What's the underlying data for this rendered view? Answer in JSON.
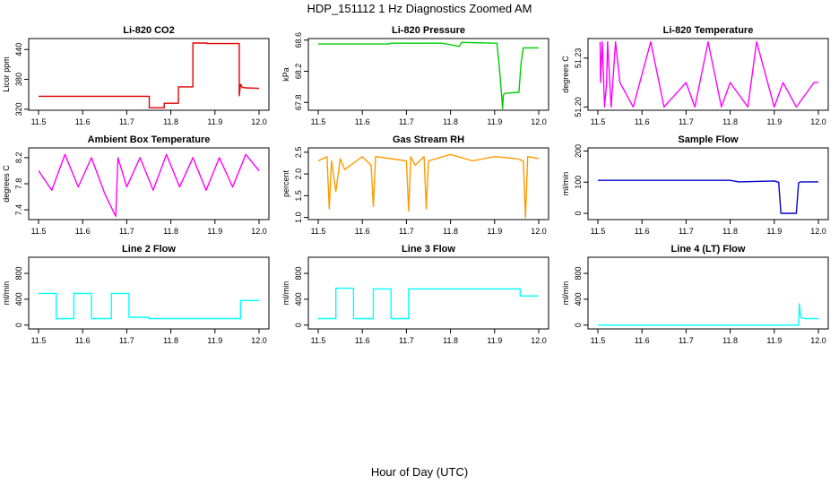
{
  "page_title": "HDP_151112  1 Hz Diagnostics Zoomed AM",
  "common_xlabel": "Hour of Day (UTC)",
  "chart_data": [
    {
      "type": "line",
      "title": "Li-820 CO2",
      "ylabel": "Licor ppm",
      "color": "#e00000",
      "xlim": [
        11.5,
        12.0
      ],
      "xticks": [
        "11.5",
        "11.6",
        "11.7",
        "11.8",
        "11.9",
        "12.0"
      ],
      "ylim": [
        318,
        462
      ],
      "yticks": [
        320,
        380,
        440
      ],
      "ytick_labels": [
        "320",
        "380",
        "440"
      ],
      "series": [
        {
          "x": [
            11.5,
            11.751,
            11.751,
            11.785,
            11.785,
            11.817,
            11.817,
            11.85,
            11.85,
            11.882,
            11.882,
            11.955,
            11.955,
            11.958,
            11.962,
            11.97,
            12.0
          ],
          "y": [
            346,
            346,
            323,
            323,
            332,
            332,
            365,
            365,
            453,
            453,
            452,
            452,
            347,
            370,
            364,
            363,
            362
          ]
        }
      ]
    },
    {
      "type": "line",
      "title": "Li-820 Pressure",
      "ylabel": "kPa",
      "color": "#00cc00",
      "xlim": [
        11.5,
        12.0
      ],
      "xticks": [
        "11.5",
        "11.6",
        "11.7",
        "11.8",
        "11.9",
        "12.0"
      ],
      "ylim": [
        67.7,
        68.62
      ],
      "yticks": [
        67.8,
        68.2,
        68.6
      ],
      "ytick_labels": [
        "67.8",
        "68.2",
        "68.6"
      ],
      "series": [
        {
          "x": [
            11.5,
            11.66,
            11.665,
            11.78,
            11.82,
            11.825,
            11.905,
            11.91,
            11.915,
            11.918,
            11.92,
            11.925,
            11.955,
            11.96,
            11.965,
            11.975,
            12.0
          ],
          "y": [
            68.55,
            68.55,
            68.56,
            68.56,
            68.52,
            68.57,
            68.56,
            68.3,
            67.95,
            67.72,
            67.9,
            67.92,
            67.93,
            68.3,
            68.5,
            68.5,
            68.5
          ]
        }
      ]
    },
    {
      "type": "line",
      "title": "Li-820 Temperature",
      "ylabel": "degrees C",
      "color": "#ff00ff",
      "xlim": [
        11.5,
        12.0
      ],
      "xticks": [
        "11.5",
        "11.6",
        "11.7",
        "11.8",
        "11.9",
        "12.0"
      ],
      "ylim": [
        51.198,
        51.242
      ],
      "yticks": [
        51.2,
        51.23
      ],
      "ytick_labels": [
        "51.20",
        "51.23"
      ],
      "series": [
        {
          "x": [
            11.505,
            11.506,
            11.51,
            11.515,
            11.52,
            11.522,
            11.53,
            11.54,
            11.55,
            11.58,
            11.62,
            11.65,
            11.7,
            11.72,
            11.75,
            11.78,
            11.8,
            11.84,
            11.86,
            11.9,
            11.92,
            11.95,
            11.99,
            12.0
          ],
          "y": [
            51.24,
            51.215,
            51.24,
            51.2,
            51.215,
            51.24,
            51.2,
            51.24,
            51.215,
            51.2,
            51.24,
            51.2,
            51.215,
            51.2,
            51.24,
            51.2,
            51.215,
            51.2,
            51.24,
            51.2,
            51.215,
            51.2,
            51.215,
            51.215
          ]
        }
      ]
    },
    {
      "type": "line",
      "title": "Ambient Box Temperature",
      "ylabel": "degrees C",
      "color": "#ff00ff",
      "xlim": [
        11.5,
        12.0
      ],
      "xticks": [
        "11.5",
        "11.6",
        "11.7",
        "11.8",
        "11.9",
        "12.0"
      ],
      "ylim": [
        7.25,
        8.35
      ],
      "yticks": [
        7.4,
        7.8,
        8.2
      ],
      "ytick_labels": [
        "7.4",
        "7.8",
        "8.2"
      ],
      "series": [
        {
          "x": [
            11.5,
            11.53,
            11.56,
            11.59,
            11.62,
            11.65,
            11.675,
            11.68,
            11.7,
            11.73,
            11.76,
            11.79,
            11.82,
            11.85,
            11.88,
            11.91,
            11.94,
            11.97,
            12.0
          ],
          "y": [
            8.0,
            7.7,
            8.25,
            7.75,
            8.2,
            7.65,
            7.3,
            8.2,
            7.75,
            8.2,
            7.7,
            8.25,
            7.75,
            8.2,
            7.7,
            8.2,
            7.75,
            8.25,
            8.0
          ]
        }
      ]
    },
    {
      "type": "line",
      "title": "Gas Stream RH",
      "ylabel": "percent",
      "color": "#ff9900",
      "xlim": [
        11.5,
        12.0
      ],
      "xticks": [
        "11.5",
        "11.6",
        "11.7",
        "11.8",
        "11.9",
        "12.0"
      ],
      "ylim": [
        0.95,
        2.6
      ],
      "yticks": [
        1.0,
        1.5,
        2.0,
        2.5
      ],
      "ytick_labels": [
        "1.0",
        "1.5",
        "2.0",
        "2.5"
      ],
      "series": [
        {
          "x": [
            11.5,
            11.52,
            11.525,
            11.53,
            11.54,
            11.55,
            11.56,
            11.6,
            11.62,
            11.625,
            11.63,
            11.7,
            11.705,
            11.71,
            11.72,
            11.74,
            11.745,
            11.75,
            11.8,
            11.85,
            11.9,
            11.95,
            11.965,
            11.97,
            11.975,
            12.0
          ],
          "y": [
            2.3,
            2.4,
            1.2,
            2.3,
            1.6,
            2.35,
            2.1,
            2.4,
            2.2,
            1.25,
            2.4,
            2.3,
            1.15,
            2.4,
            2.2,
            2.4,
            1.2,
            2.3,
            2.45,
            2.3,
            2.4,
            2.35,
            2.3,
            1.0,
            2.4,
            2.35
          ]
        }
      ]
    },
    {
      "type": "line",
      "title": "Sample Flow",
      "ylabel": "ml/min",
      "color": "#0000cc",
      "xlim": [
        11.5,
        12.0
      ],
      "xticks": [
        "11.5",
        "11.6",
        "11.7",
        "11.8",
        "11.9",
        "12.0"
      ],
      "ylim": [
        -20,
        210
      ],
      "yticks": [
        0,
        100,
        200
      ],
      "ytick_labels": [
        "0",
        "100",
        "200"
      ],
      "series": [
        {
          "x": [
            11.5,
            11.8,
            11.82,
            11.9,
            11.91,
            11.915,
            11.95,
            11.955,
            11.96,
            12.0
          ],
          "y": [
            106,
            106,
            101,
            104,
            100,
            0,
            0,
            98,
            101,
            101
          ]
        }
      ]
    },
    {
      "type": "line",
      "title": "Line 2 Flow",
      "ylabel": "ml/min",
      "color": "#00ffff",
      "xlim": [
        11.5,
        12.0
      ],
      "xticks": [
        "11.5",
        "11.6",
        "11.7",
        "11.8",
        "11.9",
        "12.0"
      ],
      "ylim": [
        -60,
        1050
      ],
      "yticks": [
        0,
        400,
        800
      ],
      "ytick_labels": [
        "0",
        "400",
        "800"
      ],
      "series": [
        {
          "x": [
            11.5,
            11.54,
            11.54,
            11.58,
            11.58,
            11.62,
            11.62,
            11.665,
            11.665,
            11.705,
            11.705,
            11.75,
            11.75,
            11.958,
            11.958,
            12.0
          ],
          "y": [
            490,
            490,
            100,
            100,
            490,
            490,
            100,
            100,
            490,
            490,
            120,
            120,
            100,
            100,
            380,
            380
          ]
        }
      ]
    },
    {
      "type": "line",
      "title": "Line 3 Flow",
      "ylabel": "ml/min",
      "color": "#00ffff",
      "xlim": [
        11.5,
        12.0
      ],
      "xticks": [
        "11.5",
        "11.6",
        "11.7",
        "11.8",
        "11.9",
        "12.0"
      ],
      "ylim": [
        -60,
        1050
      ],
      "yticks": [
        0,
        400,
        800
      ],
      "ytick_labels": [
        "0",
        "400",
        "800"
      ],
      "series": [
        {
          "x": [
            11.5,
            11.54,
            11.54,
            11.58,
            11.58,
            11.625,
            11.625,
            11.665,
            11.665,
            11.705,
            11.705,
            11.958,
            11.958,
            12.0
          ],
          "y": [
            100,
            100,
            570,
            570,
            100,
            100,
            560,
            560,
            100,
            100,
            560,
            560,
            450,
            450
          ]
        }
      ]
    },
    {
      "type": "line",
      "title": "Line 4 (LT) Flow",
      "ylabel": "ml/min",
      "color": "#00ffff",
      "xlim": [
        11.5,
        12.0
      ],
      "xticks": [
        "11.5",
        "11.6",
        "11.7",
        "11.8",
        "11.9",
        "12.0"
      ],
      "ylim": [
        -60,
        1050
      ],
      "yticks": [
        0,
        400,
        800
      ],
      "ytick_labels": [
        "0",
        "400",
        "800"
      ],
      "series": [
        {
          "x": [
            11.5,
            11.955,
            11.957,
            11.96,
            11.962,
            11.97,
            12.0
          ],
          "y": [
            0,
            0,
            330,
            120,
            110,
            100,
            100
          ]
        }
      ]
    }
  ]
}
